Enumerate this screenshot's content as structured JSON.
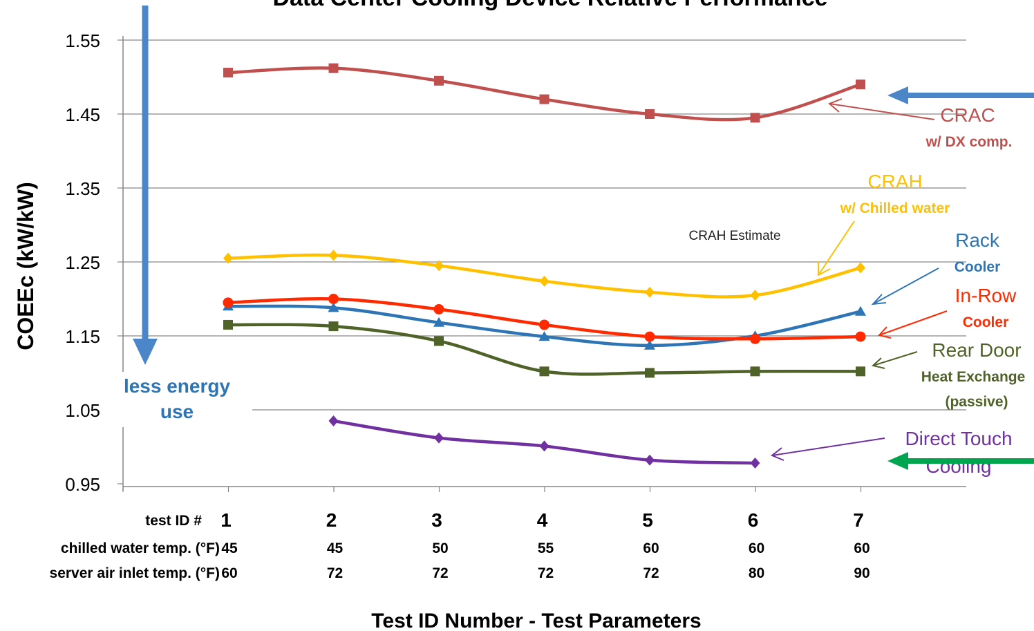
{
  "chart_data": {
    "type": "line",
    "title": "Data Center Cooling Device Relative Performance",
    "xlabel": "Test ID Number - Test Parameters",
    "ylabel": "COEEc (kW/kW)",
    "ylim": [
      0.95,
      1.55
    ],
    "yticks": [
      "1.55",
      "1.45",
      "1.35",
      "1.25",
      "1.15",
      "1.05",
      "0.95"
    ],
    "grid": true,
    "categories": [
      1,
      2,
      3,
      4,
      5,
      6,
      7
    ],
    "param_rows": [
      {
        "label": "test ID #",
        "values": [
          "1",
          "2",
          "3",
          "4",
          "5",
          "6",
          "7"
        ]
      },
      {
        "label": "chilled water temp. (°F)",
        "values": [
          "45",
          "45",
          "50",
          "55",
          "60",
          "60",
          "60"
        ]
      },
      {
        "label": "server air inlet temp. (°F)",
        "values": [
          "60",
          "72",
          "72",
          "72",
          "72",
          "80",
          "90"
        ]
      }
    ],
    "series": [
      {
        "name": "CRAC",
        "sublabel": "w/ DX comp.",
        "color": "#c0504d",
        "marker": "square",
        "values": [
          1.506,
          1.512,
          1.495,
          1.47,
          1.45,
          1.445,
          1.49
        ]
      },
      {
        "name": "CRAH",
        "sublabel": "w/ Chilled water",
        "color": "#ffc000",
        "marker": "diamond",
        "values": [
          1.255,
          1.259,
          1.245,
          1.224,
          1.209,
          1.205,
          1.242
        ]
      },
      {
        "name": "Rack",
        "sublabel": "Cooler",
        "color": "#2e75b6",
        "marker": "triangle",
        "values": [
          1.19,
          1.188,
          1.168,
          1.149,
          1.137,
          1.15,
          1.183
        ]
      },
      {
        "name": "In-Row",
        "sublabel": "Cooler",
        "color": "#ff2a00",
        "marker": "circle",
        "values": [
          1.195,
          1.2,
          1.186,
          1.165,
          1.149,
          1.146,
          1.149
        ]
      },
      {
        "name": "Rear Door",
        "sublabel": "Heat Exchange",
        "sublabel2": "(passive)",
        "color": "#4f6228",
        "marker": "square",
        "values": [
          1.165,
          1.163,
          1.143,
          1.102,
          1.1,
          1.102,
          1.102
        ]
      },
      {
        "name": "Direct Touch",
        "sublabel": "Cooling",
        "color": "#7030a0",
        "marker": "diamond",
        "values": [
          null,
          1.035,
          1.012,
          1.001,
          0.982,
          0.978,
          null
        ]
      }
    ],
    "annotations": {
      "crah_estimate": "CRAH Estimate",
      "less_energy_line1": "less energy",
      "less_energy_line2": "use"
    }
  }
}
